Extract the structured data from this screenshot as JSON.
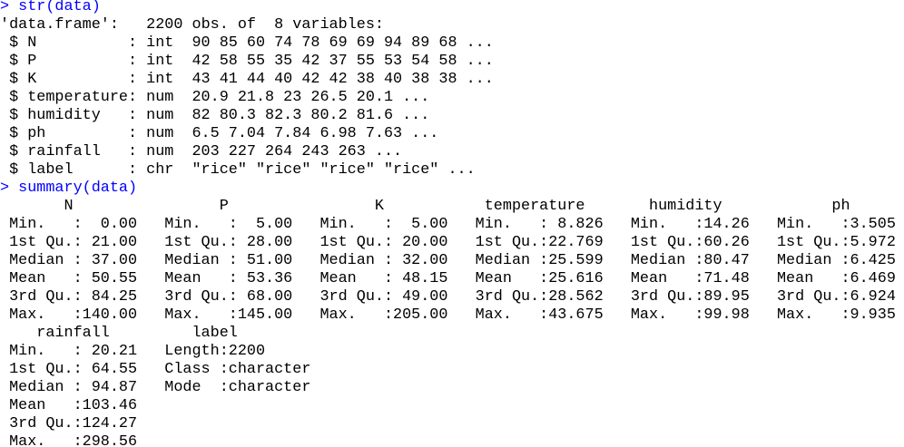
{
  "theme": {
    "command_color": "#0000ff",
    "output_color": "#000000",
    "background": "#ffffff"
  },
  "console": {
    "lines": [
      {
        "kind": "command",
        "text": "> str(data)"
      },
      {
        "kind": "output",
        "text": "'data.frame':\t2200 obs. of  8 variables:"
      },
      {
        "kind": "output",
        "text": " $ N          : int  90 85 60 74 78 69 69 94 89 68 ..."
      },
      {
        "kind": "output",
        "text": " $ P          : int  42 58 55 35 42 37 55 53 54 58 ..."
      },
      {
        "kind": "output",
        "text": " $ K          : int  43 41 44 40 42 42 38 40 38 38 ..."
      },
      {
        "kind": "output",
        "text": " $ temperature: num  20.9 21.8 23 26.5 20.1 ..."
      },
      {
        "kind": "output",
        "text": " $ humidity   : num  82 80.3 82.3 80.2 81.6 ..."
      },
      {
        "kind": "output",
        "text": " $ ph         : num  6.5 7.04 7.84 6.98 7.63 ..."
      },
      {
        "kind": "output",
        "text": " $ rainfall   : num  203 227 264 243 263 ..."
      },
      {
        "kind": "output",
        "text": " $ label      : chr  \"rice\" \"rice\" \"rice\" \"rice\" ..."
      },
      {
        "kind": "command",
        "text": "> summary(data)"
      },
      {
        "kind": "output",
        "text": "       N                P                K           temperature       humidity            ph       "
      },
      {
        "kind": "output",
        "text": " Min.   :  0.00   Min.   :  5.00   Min.   :  5.00   Min.   : 8.826   Min.   :14.26   Min.   :3.505  "
      },
      {
        "kind": "output",
        "text": " 1st Qu.: 21.00   1st Qu.: 28.00   1st Qu.: 20.00   1st Qu.:22.769   1st Qu.:60.26   1st Qu.:5.972  "
      },
      {
        "kind": "output",
        "text": " Median : 37.00   Median : 51.00   Median : 32.00   Median :25.599   Median :80.47   Median :6.425  "
      },
      {
        "kind": "output",
        "text": " Mean   : 50.55   Mean   : 53.36   Mean   : 48.15   Mean   :25.616   Mean   :71.48   Mean   :6.469  "
      },
      {
        "kind": "output",
        "text": " 3rd Qu.: 84.25   3rd Qu.: 68.00   3rd Qu.: 49.00   3rd Qu.:28.562   3rd Qu.:89.95   3rd Qu.:6.924  "
      },
      {
        "kind": "output",
        "text": " Max.   :140.00   Max.   :145.00   Max.   :205.00   Max.   :43.675   Max.   :99.98   Max.   :9.935  "
      },
      {
        "kind": "output",
        "text": "    rainfall         label          "
      },
      {
        "kind": "output",
        "text": " Min.   : 20.21   Length:2200       "
      },
      {
        "kind": "output",
        "text": " 1st Qu.: 64.55   Class :character  "
      },
      {
        "kind": "output",
        "text": " Median : 94.87   Mode  :character  "
      },
      {
        "kind": "output",
        "text": " Mean   :103.46                     "
      },
      {
        "kind": "output",
        "text": " 3rd Qu.:124.27                     "
      },
      {
        "kind": "output",
        "text": " Max.   :298.56                     "
      }
    ]
  }
}
